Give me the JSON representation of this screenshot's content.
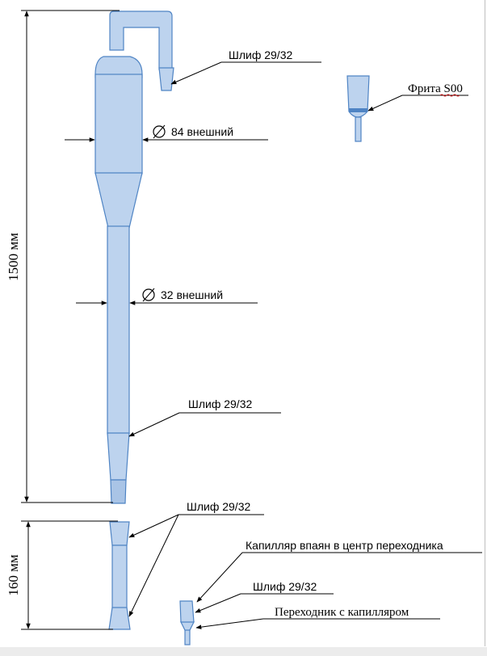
{
  "dimensions": {
    "total_height": "1500 мм",
    "bottom_height": "160 мм"
  },
  "labels": {
    "top_joint": "Шлиф 29/32",
    "frit": "Фрита S00",
    "outer_diameter_large": "84 внешний",
    "outer_diameter_small": "32 внешний",
    "lower_joint": "Шлиф 29/32",
    "adapter_joints": "Шлиф 29/32",
    "capillary_soldered": "Капилляр впаян в центр переходника",
    "adapter_joint": "Шлиф 29/32",
    "adapter_with_capillary": "Переходник с капилляром"
  },
  "symbols": {
    "diameter": "∅"
  },
  "colors": {
    "glass_fill": "#bdd3ee",
    "glass_stroke": "#4f84c4",
    "frit_band": "#4f84c4",
    "underline_wavy": "#d02020"
  }
}
